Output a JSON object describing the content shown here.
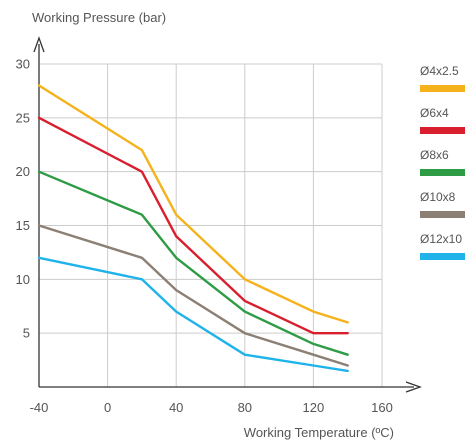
{
  "chart_data": {
    "type": "line",
    "ylabel": "Working Pressure (bar)",
    "xlabel": "Working Temperature (ºC)",
    "x_ticks": [
      "-40",
      "0",
      "40",
      "80",
      "120",
      "160"
    ],
    "y_ticks": [
      "5",
      "10",
      "15",
      "20",
      "25",
      "30"
    ],
    "xlim": [
      -40,
      160
    ],
    "ylim": [
      0,
      30
    ],
    "grid": true,
    "legend_position": "right",
    "series": [
      {
        "name": "Ø4x2.5",
        "color": "#f5b21a",
        "points": [
          [
            -40,
            28
          ],
          [
            20,
            22
          ],
          [
            40,
            16
          ],
          [
            80,
            10
          ],
          [
            120,
            7
          ],
          [
            140,
            6
          ]
        ]
      },
      {
        "name": "Ø6x4",
        "color": "#d91f2e",
        "points": [
          [
            -40,
            25
          ],
          [
            20,
            20
          ],
          [
            40,
            14
          ],
          [
            80,
            8
          ],
          [
            120,
            5
          ],
          [
            140,
            5
          ]
        ]
      },
      {
        "name": "Ø8x6",
        "color": "#2e9b45",
        "points": [
          [
            -40,
            20
          ],
          [
            20,
            16
          ],
          [
            40,
            12
          ],
          [
            80,
            7
          ],
          [
            120,
            4
          ],
          [
            140,
            3
          ]
        ]
      },
      {
        "name": "Ø10x8",
        "color": "#8c7f74",
        "points": [
          [
            -40,
            15
          ],
          [
            20,
            12
          ],
          [
            40,
            9
          ],
          [
            80,
            5
          ],
          [
            120,
            3
          ],
          [
            140,
            2
          ]
        ]
      },
      {
        "name": "Ø12x10",
        "color": "#1fb3ea",
        "points": [
          [
            -40,
            12
          ],
          [
            20,
            10
          ],
          [
            40,
            7
          ],
          [
            80,
            3
          ],
          [
            120,
            2
          ],
          [
            140,
            1.5
          ]
        ]
      }
    ]
  }
}
